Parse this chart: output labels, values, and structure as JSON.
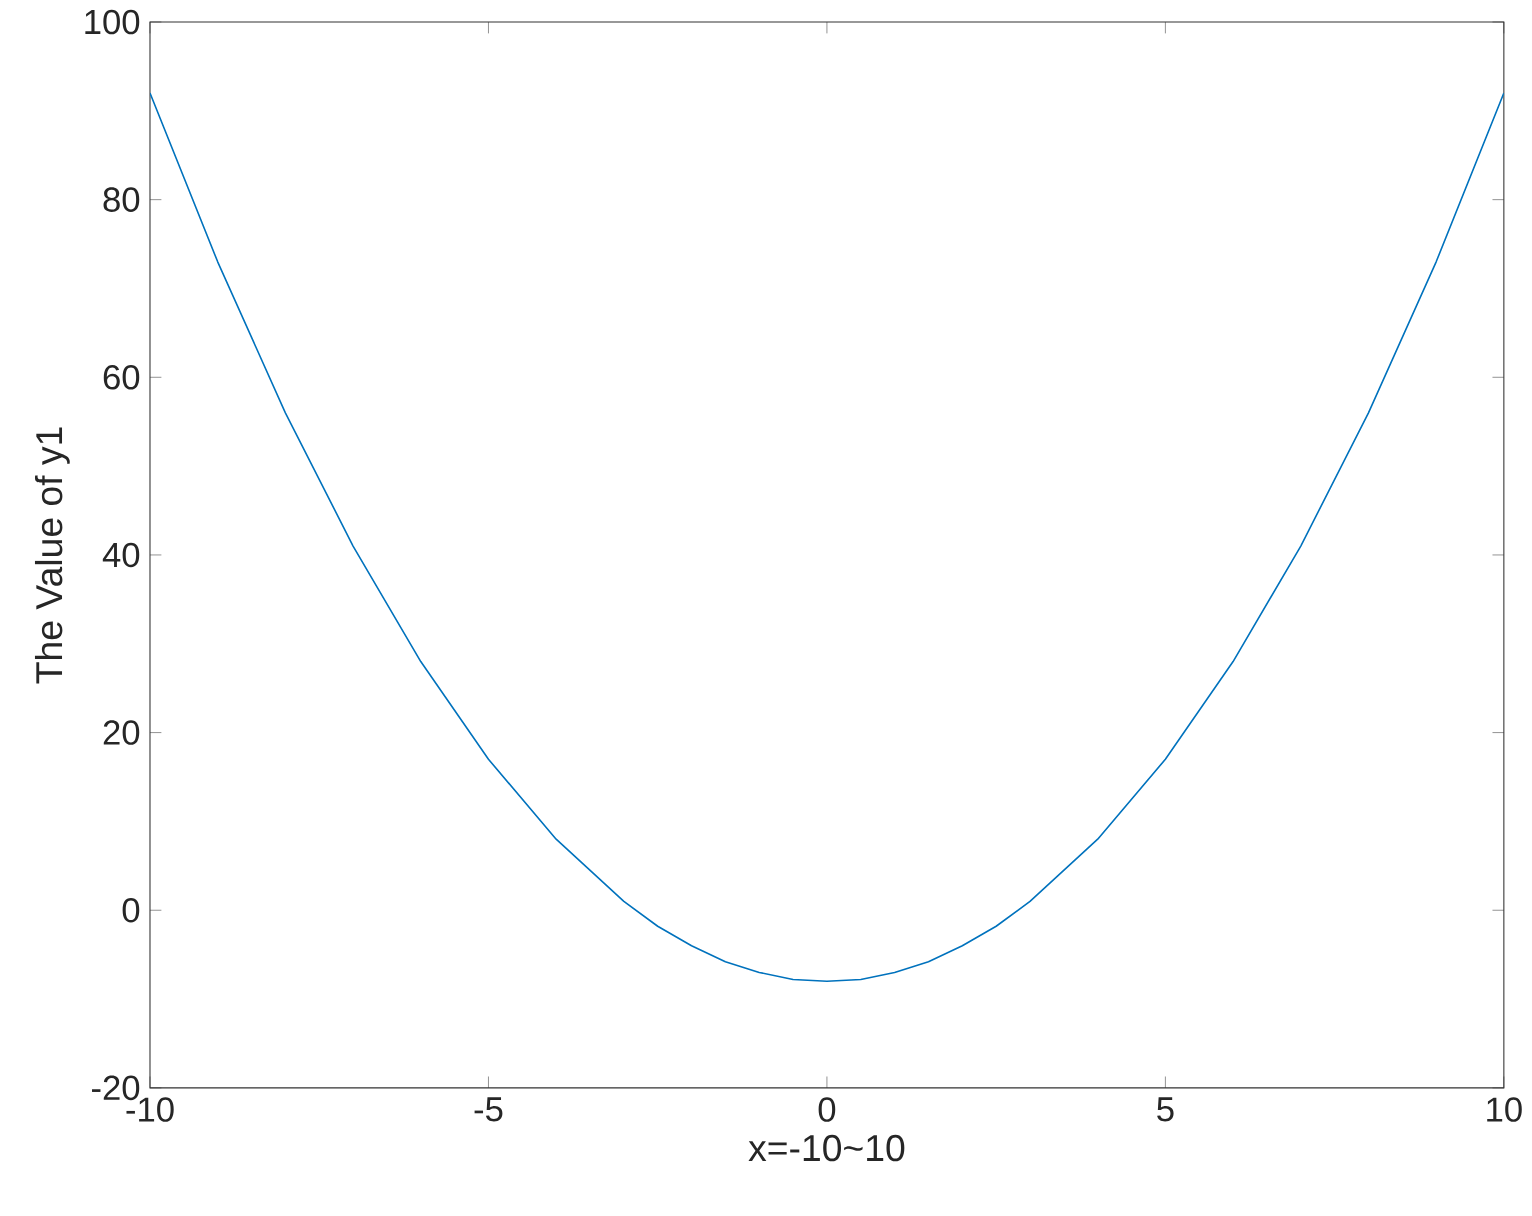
{
  "chart_data": {
    "type": "line",
    "xlabel": "x=-10~10",
    "ylabel": "The Value of y1",
    "x": [
      -10,
      -9,
      -8,
      -7,
      -6,
      -5,
      -4,
      -3,
      -2.5,
      -2,
      -1.5,
      -1,
      -0.5,
      0,
      0.5,
      1,
      1.5,
      2,
      2.5,
      3,
      4,
      5,
      6,
      7,
      8,
      9,
      10
    ],
    "series": [
      {
        "color": "#0072bd",
        "values": [
          92,
          73,
          56,
          41,
          28,
          17,
          8,
          1,
          -1.8,
          -4,
          -5.8,
          -7,
          -7.8,
          -8,
          -7.8,
          -7,
          -5.8,
          -4,
          -1.8,
          1,
          8,
          17,
          28,
          41,
          56,
          73,
          92
        ]
      }
    ],
    "xlim": [
      -10,
      10
    ],
    "ylim": [
      -20,
      100
    ],
    "xticks": [
      -10,
      -5,
      0,
      5,
      10
    ],
    "yticks": [
      -20,
      0,
      20,
      40,
      60,
      80,
      100
    ],
    "marker": "none",
    "line_style": "solid"
  }
}
